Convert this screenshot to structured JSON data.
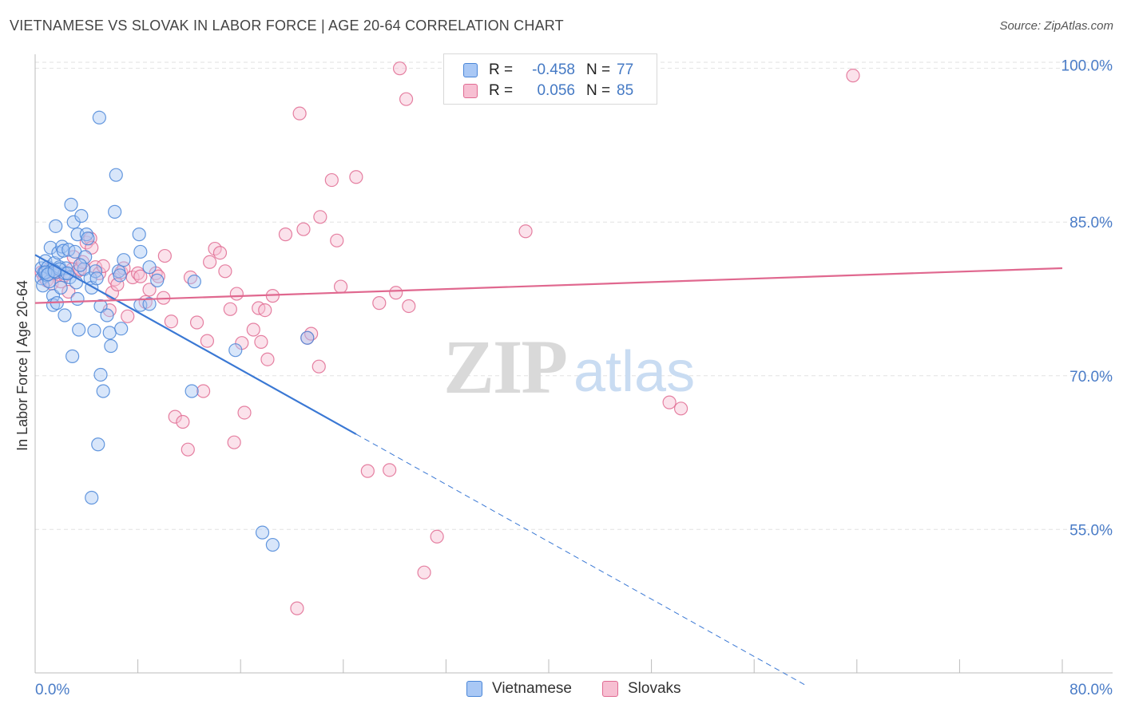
{
  "header": {
    "title": "VIETNAMESE VS SLOVAK IN LABOR FORCE | AGE 20-64 CORRELATION CHART",
    "source": "Source: ZipAtlas.com"
  },
  "legend": {
    "series": [
      {
        "swatch": "#a9c8f5",
        "r_label": "R =",
        "r_value": "-0.458",
        "n_label": "N =",
        "n_value": "77"
      },
      {
        "swatch": "#f7bfd2",
        "r_label": "R =",
        "r_value": "0.056",
        "n_label": "N =",
        "n_value": "85"
      }
    ]
  },
  "bottom_legend": [
    "Vietnamese",
    "Slovaks"
  ],
  "watermark": {
    "zip": "ZIP",
    "atlas": "atlas"
  },
  "colors": {
    "blue": "#4a86d8",
    "blue_fill": "#a9c8f5",
    "blue_line": "#3a78d4",
    "pink": "#e06b92",
    "pink_fill": "#f7bfd2",
    "pink_line": "#e0688f",
    "tick_label": "#4a7cc7",
    "grid": "#e2e2e2"
  },
  "chart_data": {
    "type": "scatter",
    "title": "VIETNAMESE VS SLOVAK IN LABOR FORCE | AGE 20-64 CORRELATION CHART",
    "xlabel": "",
    "ylabel": "In Labor Force | Age 20-64",
    "xlim": [
      0,
      80
    ],
    "ylim": [
      41,
      102
    ],
    "x_tick_labels": [
      "0.0%",
      "80.0%"
    ],
    "y_ticks": [
      55,
      70,
      85,
      100
    ],
    "y_tick_labels": [
      "55.0%",
      "70.0%",
      "85.0%",
      "100.0%"
    ],
    "grid": true,
    "series": [
      {
        "name": "Vietnamese",
        "r": -0.458,
        "n": 77,
        "trend": {
          "x0": 0,
          "y0": 81.8,
          "x1": 25,
          "y1": 64.3,
          "dashed_to_x": 60
        },
        "points": [
          [
            0.5,
            80.5
          ],
          [
            0.5,
            79.5
          ],
          [
            0.6,
            78.8
          ],
          [
            0.7,
            80.1
          ],
          [
            0.8,
            81.2
          ],
          [
            0.9,
            79.8
          ],
          [
            1.0,
            80.6
          ],
          [
            1.1,
            79.2
          ],
          [
            1.2,
            82.5
          ],
          [
            1.3,
            80.3
          ],
          [
            1.4,
            77.8
          ],
          [
            1.4,
            76.9
          ],
          [
            1.5,
            81.0
          ],
          [
            1.6,
            84.6
          ],
          [
            1.6,
            80.1
          ],
          [
            1.7,
            77.1
          ],
          [
            1.8,
            82.0
          ],
          [
            1.9,
            80.6
          ],
          [
            2.0,
            78.6
          ],
          [
            2.1,
            82.6
          ],
          [
            2.2,
            82.2
          ],
          [
            2.3,
            80.0
          ],
          [
            2.3,
            75.9
          ],
          [
            2.4,
            80.5
          ],
          [
            2.6,
            82.3
          ],
          [
            2.7,
            79.6
          ],
          [
            2.8,
            86.7
          ],
          [
            2.9,
            71.9
          ],
          [
            3.0,
            85.0
          ],
          [
            3.1,
            82.1
          ],
          [
            3.2,
            79.1
          ],
          [
            3.3,
            83.8
          ],
          [
            3.3,
            77.5
          ],
          [
            3.4,
            74.5
          ],
          [
            3.6,
            85.6
          ],
          [
            3.8,
            80.4
          ],
          [
            3.9,
            81.6
          ],
          [
            4.0,
            83.8
          ],
          [
            4.1,
            83.4
          ],
          [
            4.3,
            79.5
          ],
          [
            4.4,
            78.6
          ],
          [
            4.6,
            74.4
          ],
          [
            4.7,
            80.2
          ],
          [
            4.8,
            79.5
          ],
          [
            4.9,
            63.3
          ],
          [
            5.0,
            95.2
          ],
          [
            5.1,
            70.1
          ],
          [
            5.1,
            76.8
          ],
          [
            5.3,
            68.5
          ],
          [
            5.6,
            75.9
          ],
          [
            5.8,
            74.2
          ],
          [
            5.9,
            72.9
          ],
          [
            6.2,
            86.0
          ],
          [
            6.3,
            89.6
          ],
          [
            6.5,
            80.2
          ],
          [
            6.6,
            79.8
          ],
          [
            6.7,
            74.6
          ],
          [
            6.9,
            81.3
          ],
          [
            8.2,
            76.9
          ],
          [
            8.2,
            82.1
          ],
          [
            8.1,
            83.8
          ],
          [
            8.9,
            80.6
          ],
          [
            8.9,
            77.0
          ],
          [
            9.5,
            79.3
          ],
          [
            12.4,
            79.2
          ],
          [
            12.2,
            68.5
          ],
          [
            15.6,
            72.5
          ],
          [
            17.7,
            54.7
          ],
          [
            18.5,
            53.5
          ],
          [
            21.2,
            73.7
          ],
          [
            4.4,
            58.1
          ],
          [
            1.9,
            80.4
          ],
          [
            0.8,
            80.1
          ],
          [
            1.0,
            79.9
          ],
          [
            2.5,
            80.0
          ],
          [
            1.5,
            80.2
          ],
          [
            3.5,
            80.8
          ]
        ]
      },
      {
        "name": "Slovaks",
        "r": 0.056,
        "n": 85,
        "trend": {
          "x0": 0,
          "y0": 77.1,
          "x1": 80,
          "y1": 80.5
        },
        "points": [
          [
            0.5,
            80.1
          ],
          [
            0.7,
            79.6
          ],
          [
            0.9,
            79.3
          ],
          [
            1.1,
            80.4
          ],
          [
            1.3,
            79.0
          ],
          [
            1.5,
            80.0
          ],
          [
            1.8,
            79.9
          ],
          [
            2.0,
            79.2
          ],
          [
            2.3,
            79.8
          ],
          [
            2.6,
            78.2
          ],
          [
            2.9,
            80.4
          ],
          [
            3.0,
            81.6
          ],
          [
            3.3,
            80.2
          ],
          [
            3.5,
            80.4
          ],
          [
            3.7,
            81.1
          ],
          [
            4.0,
            83.0
          ],
          [
            4.3,
            83.4
          ],
          [
            4.4,
            82.5
          ],
          [
            4.7,
            80.6
          ],
          [
            5.0,
            80.0
          ],
          [
            5.3,
            80.7
          ],
          [
            5.8,
            76.4
          ],
          [
            6.0,
            78.1
          ],
          [
            6.2,
            79.4
          ],
          [
            6.4,
            78.9
          ],
          [
            6.7,
            80.1
          ],
          [
            6.9,
            80.5
          ],
          [
            7.2,
            75.8
          ],
          [
            7.6,
            79.6
          ],
          [
            8.0,
            80.0
          ],
          [
            8.2,
            79.7
          ],
          [
            8.6,
            77.2
          ],
          [
            8.9,
            78.4
          ],
          [
            9.4,
            80.0
          ],
          [
            9.6,
            79.7
          ],
          [
            10.0,
            77.6
          ],
          [
            10.1,
            81.7
          ],
          [
            10.6,
            75.3
          ],
          [
            10.9,
            66.0
          ],
          [
            11.5,
            65.5
          ],
          [
            11.9,
            62.8
          ],
          [
            12.1,
            79.6
          ],
          [
            12.6,
            75.2
          ],
          [
            13.1,
            68.5
          ],
          [
            13.4,
            73.4
          ],
          [
            13.6,
            81.1
          ],
          [
            14.0,
            82.4
          ],
          [
            14.4,
            82.0
          ],
          [
            14.8,
            80.2
          ],
          [
            15.2,
            76.5
          ],
          [
            15.7,
            78.0
          ],
          [
            15.5,
            63.5
          ],
          [
            16.1,
            73.2
          ],
          [
            16.3,
            66.4
          ],
          [
            17.0,
            74.5
          ],
          [
            17.4,
            76.6
          ],
          [
            17.9,
            76.4
          ],
          [
            17.6,
            73.3
          ],
          [
            18.1,
            71.6
          ],
          [
            18.5,
            77.8
          ],
          [
            19.5,
            83.8
          ],
          [
            20.4,
            47.3
          ],
          [
            20.6,
            95.6
          ],
          [
            20.9,
            84.3
          ],
          [
            21.2,
            73.7
          ],
          [
            21.5,
            74.1
          ],
          [
            22.1,
            70.9
          ],
          [
            22.2,
            85.5
          ],
          [
            23.1,
            89.1
          ],
          [
            23.5,
            83.2
          ],
          [
            23.8,
            78.7
          ],
          [
            25.0,
            89.4
          ],
          [
            25.9,
            60.7
          ],
          [
            26.8,
            77.1
          ],
          [
            27.6,
            60.8
          ],
          [
            28.1,
            78.1
          ],
          [
            28.4,
            100.0
          ],
          [
            28.9,
            97.0
          ],
          [
            29.1,
            76.8
          ],
          [
            30.3,
            50.8
          ],
          [
            31.3,
            54.3
          ],
          [
            38.2,
            84.1
          ],
          [
            49.4,
            67.4
          ],
          [
            50.3,
            66.8
          ],
          [
            63.7,
            99.3
          ]
        ]
      }
    ]
  }
}
